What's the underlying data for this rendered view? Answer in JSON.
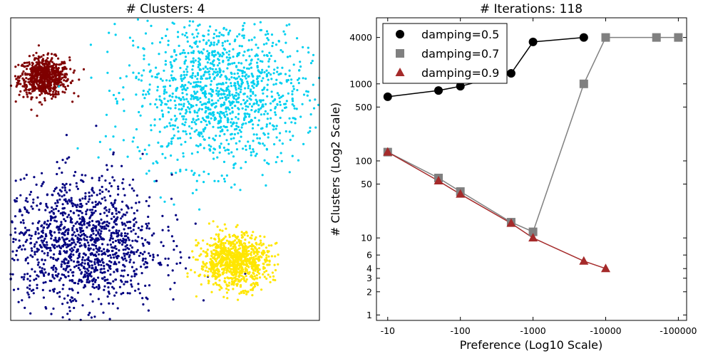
{
  "chart_data": [
    {
      "type": "scatter",
      "title": "# Clusters: 4",
      "xlabel": "",
      "ylabel": "",
      "grid": false,
      "clusters": [
        {
          "color": "#7f0000",
          "center": [
            -2.55,
            2.25
          ],
          "std": [
            0.28,
            0.22
          ],
          "n": 700
        },
        {
          "color": "#00d0f0",
          "center": [
            1.35,
            1.9
          ],
          "std": [
            0.95,
            0.85
          ],
          "n": 1300
        },
        {
          "color": "#000080",
          "center": [
            -1.7,
            -1.55
          ],
          "std": [
            0.85,
            0.75
          ],
          "n": 1300
        },
        {
          "color": "#ffe600",
          "center": [
            1.7,
            -1.95
          ],
          "std": [
            0.38,
            0.3
          ],
          "n": 900
        }
      ],
      "xlim": [
        -3.3,
        3.6
      ],
      "ylim": [
        -3.3,
        3.6
      ]
    },
    {
      "type": "line",
      "title": "# Iterations: 118",
      "xlabel": "Preference (Log10 Scale)",
      "ylabel": "# Clusters (Log2 Scale)",
      "x_scale": "log10",
      "y_scale": "log2",
      "x_tick_values": [
        10,
        100,
        1000,
        10000,
        100000
      ],
      "x_tick_labels": [
        "-10",
        "-100",
        "-1000",
        "-10000",
        "-100000"
      ],
      "y_tick_values": [
        1,
        2,
        3,
        4,
        6,
        10,
        50,
        100,
        500,
        1000,
        4000
      ],
      "y_tick_labels": [
        "1",
        "2",
        "3",
        "4",
        "6",
        "10",
        "50",
        "100",
        "500",
        "1000",
        "4000"
      ],
      "xlim": [
        7,
        130000
      ],
      "ylim": [
        0.85,
        7200
      ],
      "legend_position": "top-left",
      "series": [
        {
          "name": "damping=0.5",
          "color": "#000000",
          "marker": "circle",
          "x": [
            10,
            50,
            100,
            500,
            1000,
            5000
          ],
          "y": [
            680,
            820,
            930,
            1370,
            3500,
            4000
          ]
        },
        {
          "name": "damping=0.7",
          "color": "#808080",
          "marker": "square",
          "x": [
            10,
            50,
            100,
            500,
            1000,
            5000,
            10000,
            50000,
            100000
          ],
          "y": [
            130,
            60,
            40,
            16,
            12,
            1000,
            4000,
            4000,
            4000
          ]
        },
        {
          "name": "damping=0.9",
          "color": "#a52a2a",
          "marker": "triangle",
          "x": [
            10,
            50,
            100,
            500,
            1000,
            5000,
            10000
          ],
          "y": [
            130,
            55,
            37,
            15.5,
            10,
            5,
            4
          ]
        }
      ]
    }
  ]
}
